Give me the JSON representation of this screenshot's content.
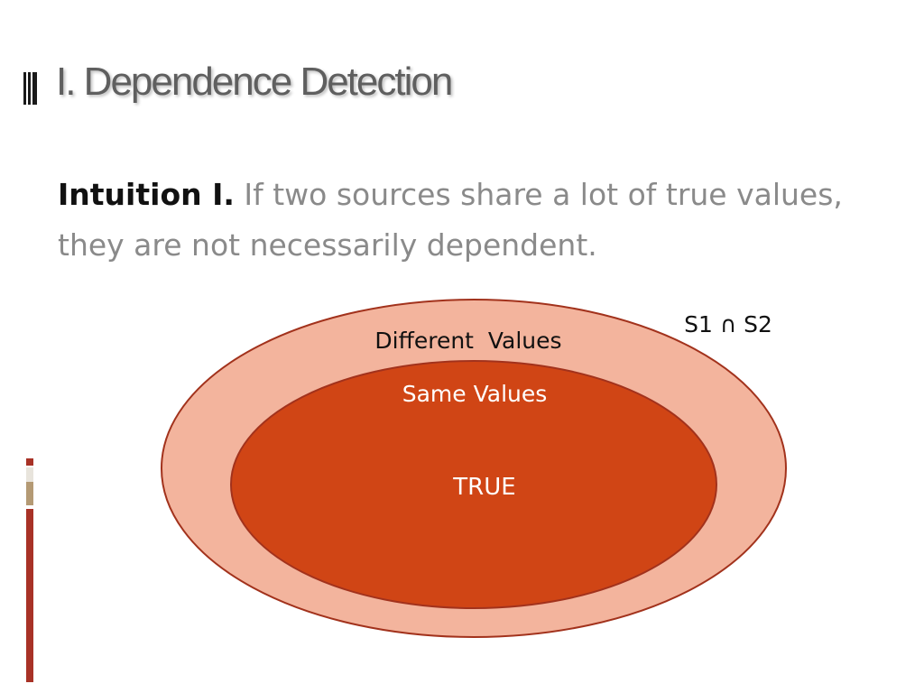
{
  "slide": {
    "title": "I. Dependence Detection",
    "body": {
      "lead": "Intuition I.",
      "text": "If two sources share a lot of true values, they are not necessarily dependent."
    }
  },
  "diagram": {
    "set_label": "S1 ∩ S2",
    "outer_label": "Different  Values",
    "inner_label": "Same Values",
    "center_label": "TRUE"
  },
  "colors": {
    "outer_fill": "#f3b49d",
    "inner_fill": "#d04515",
    "stroke": "#a2321c",
    "accent_dark": "#a83226",
    "accent_light": "#e8e4dc",
    "accent_tan": "#b49a74"
  },
  "icons": {
    "title_marker": "three-bar-marker-icon"
  }
}
